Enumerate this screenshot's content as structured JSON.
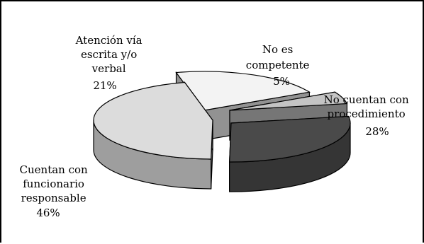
{
  "chart_data": {
    "type": "pie",
    "style": "3d-exploded",
    "title": "",
    "legend": "none",
    "slices": [
      {
        "label": "No cuentan con procedimiento",
        "value": 28,
        "value_label": "28%",
        "color": "#4a4a4a"
      },
      {
        "label": "Cuentan con funcionario responsable",
        "value": 46,
        "value_label": "46%",
        "color": "#dcdcdc"
      },
      {
        "label": "Atención vía escrita y/o verbal",
        "value": 21,
        "value_label": "21%",
        "color": "#f3f3f3"
      },
      {
        "label": "No es competente",
        "value": 5,
        "value_label": "5%",
        "color": "#c4c4c4"
      }
    ]
  }
}
